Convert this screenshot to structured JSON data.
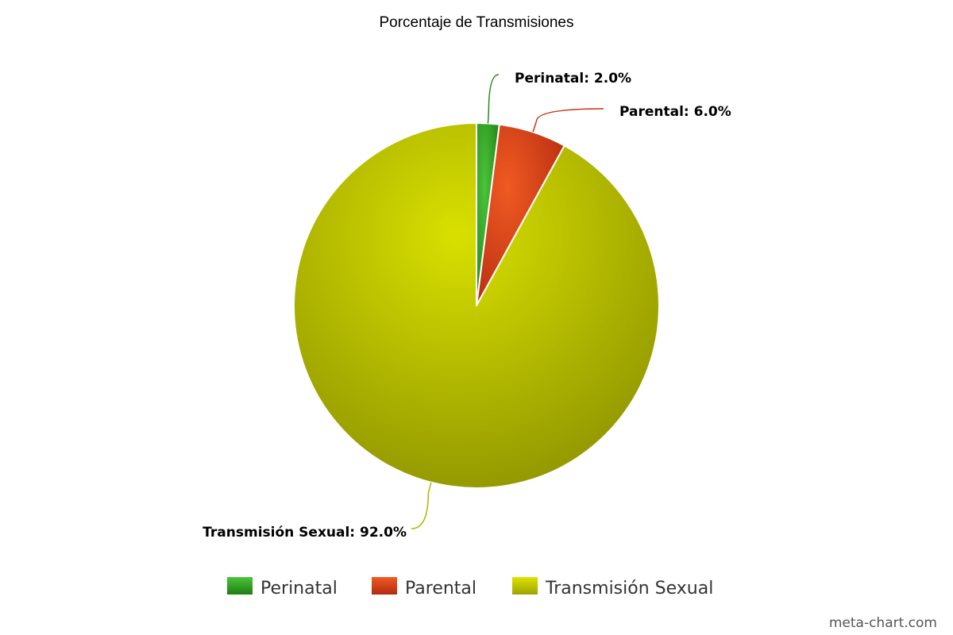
{
  "chart_data": {
    "type": "pie",
    "title": "Porcentaje de Transmisiones",
    "categories": [
      "Perinatal",
      "Parental",
      "Transmisión Sexual"
    ],
    "values": [
      2.0,
      6.0,
      92.0
    ],
    "data_labels": [
      "Perinatal: 2.0%",
      "Parental: 6.0%",
      "Transmisión Sexual: 92.0%"
    ],
    "colors": [
      "#2e9a1e",
      "#d9401a",
      "#b7bd00"
    ],
    "start_angle": "12 o'clock",
    "direction": "clockwise",
    "legend": {
      "placement": "bottom-center",
      "entries": [
        "Perinatal",
        "Parental",
        "Transmisión Sexual"
      ]
    }
  },
  "watermark": "meta-chart.com"
}
